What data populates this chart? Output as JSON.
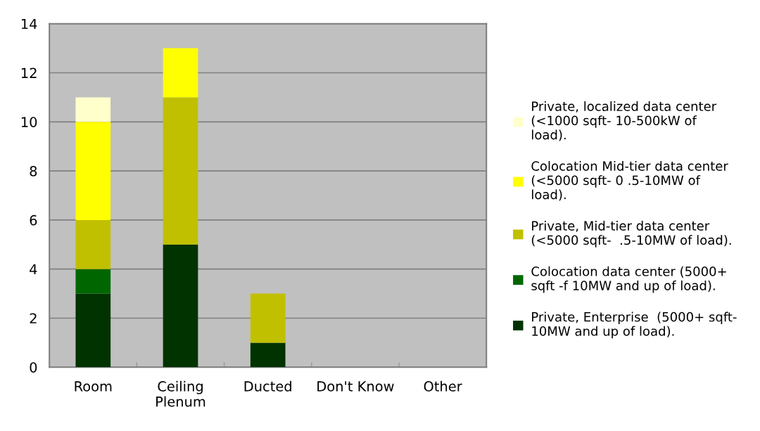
{
  "chart_data": {
    "type": "bar",
    "stacked": true,
    "categories": [
      "Room",
      "Ceiling\nPlenum",
      "Ducted",
      "Don't Know",
      "Other"
    ],
    "series": [
      {
        "name": "Private, Enterprise  (5000+ sqft-\n10MW and up of load).",
        "color": "#003300",
        "values": [
          3,
          5,
          1,
          0,
          0
        ]
      },
      {
        "name": "Colocation data center (5000+\nsqft -f 10MW and up of load).",
        "color": "#006600",
        "values": [
          1,
          0,
          0,
          0,
          0
        ]
      },
      {
        "name": "Private, Mid-tier data center\n(<5000 sqft-  .5-10MW of load).",
        "color": "#c0c000",
        "values": [
          2,
          6,
          2,
          0,
          0
        ]
      },
      {
        "name": "Colocation Mid-tier data center\n(<5000 sqft- 0 .5-10MW of\nload).",
        "color": "#ffff00",
        "values": [
          4,
          2,
          0,
          0,
          0
        ]
      },
      {
        "name": "Private, localized data center\n(<1000 sqft- 10-500kW of\nload).",
        "color": "#ffffcc",
        "values": [
          1,
          0,
          0,
          0,
          0
        ]
      }
    ],
    "ylim": [
      0,
      14
    ],
    "yticks": [
      0,
      2,
      4,
      6,
      8,
      10,
      12,
      14
    ],
    "grid": "y",
    "legend": "right"
  }
}
